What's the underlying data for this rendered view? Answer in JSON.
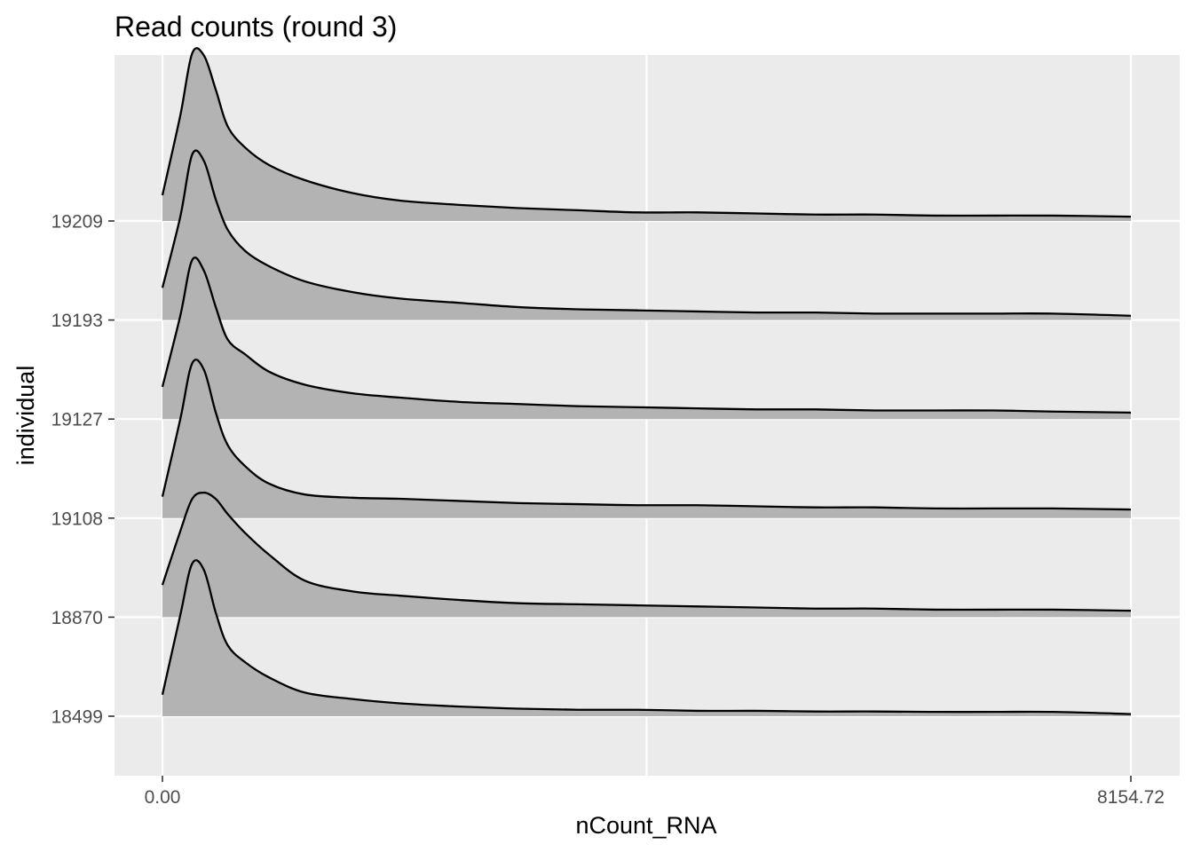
{
  "chart_data": {
    "type": "ridgeline",
    "title": "Read counts (round 3)",
    "xlabel": "nCount_RNA",
    "ylabel": "individual",
    "xlim": [
      0,
      8154.72
    ],
    "x_tick_labels": [
      "0.00",
      "8154.72"
    ],
    "x_ticks": [
      0,
      8154.72
    ],
    "grid": true,
    "colors": {
      "panel": "#ebebeb",
      "grid": "#ffffff",
      "fill": "#b3b3b3",
      "line": "#000000",
      "tick_text": "#4d4d4d"
    },
    "x": [
      0,
      150,
      250,
      350,
      450,
      550,
      700,
      900,
      1200,
      1600,
      2000,
      2500,
      3000,
      3500,
      4000,
      4500,
      5000,
      5500,
      6000,
      6500,
      7000,
      7500,
      8154.72
    ],
    "series": [
      {
        "name": "18499",
        "values": [
          0.1,
          0.47,
          0.71,
          0.68,
          0.48,
          0.33,
          0.25,
          0.18,
          0.11,
          0.08,
          0.06,
          0.045,
          0.035,
          0.03,
          0.03,
          0.025,
          0.025,
          0.022,
          0.022,
          0.02,
          0.02,
          0.02,
          0.01
        ]
      },
      {
        "name": "18870",
        "values": [
          0.15,
          0.4,
          0.55,
          0.58,
          0.55,
          0.48,
          0.39,
          0.29,
          0.17,
          0.12,
          0.1,
          0.08,
          0.065,
          0.06,
          0.055,
          0.05,
          0.045,
          0.04,
          0.04,
          0.035,
          0.035,
          0.035,
          0.03
        ]
      },
      {
        "name": "19108",
        "values": [
          0.1,
          0.46,
          0.72,
          0.69,
          0.49,
          0.34,
          0.24,
          0.16,
          0.11,
          0.095,
          0.09,
          0.08,
          0.07,
          0.065,
          0.06,
          0.06,
          0.055,
          0.05,
          0.05,
          0.045,
          0.045,
          0.045,
          0.04
        ]
      },
      {
        "name": "19127",
        "values": [
          0.15,
          0.48,
          0.74,
          0.69,
          0.52,
          0.37,
          0.3,
          0.22,
          0.16,
          0.12,
          0.1,
          0.08,
          0.07,
          0.06,
          0.055,
          0.05,
          0.045,
          0.045,
          0.04,
          0.04,
          0.04,
          0.035,
          0.03
        ]
      },
      {
        "name": "19193",
        "values": [
          0.15,
          0.48,
          0.77,
          0.74,
          0.56,
          0.42,
          0.32,
          0.25,
          0.18,
          0.13,
          0.1,
          0.08,
          0.06,
          0.05,
          0.045,
          0.04,
          0.035,
          0.035,
          0.03,
          0.03,
          0.03,
          0.03,
          0.02
        ]
      },
      {
        "name": "19209",
        "values": [
          0.12,
          0.49,
          0.78,
          0.77,
          0.61,
          0.44,
          0.34,
          0.26,
          0.19,
          0.13,
          0.095,
          0.075,
          0.06,
          0.05,
          0.04,
          0.04,
          0.035,
          0.03,
          0.03,
          0.025,
          0.025,
          0.025,
          0.02
        ]
      }
    ]
  }
}
